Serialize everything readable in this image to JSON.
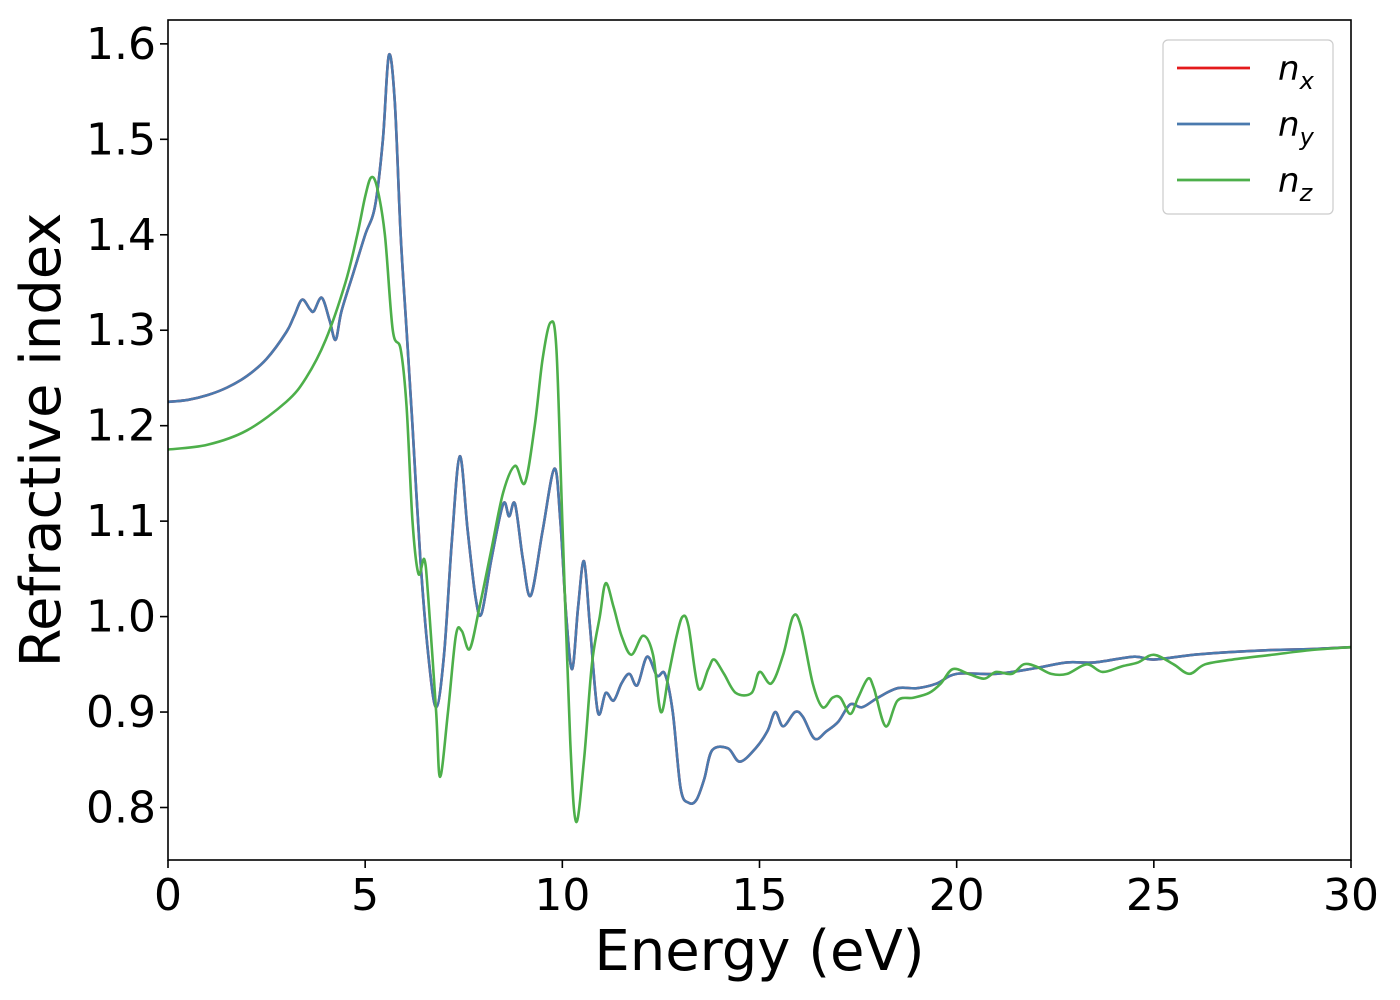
{
  "chart_data": {
    "type": "line",
    "xlabel": "Energy (eV)",
    "ylabel": "Refractive index",
    "xlim": [
      0,
      30
    ],
    "ylim": [
      0.745,
      1.625
    ],
    "xticks": [
      0,
      5,
      10,
      15,
      20,
      25,
      30
    ],
    "xtick_labels": [
      "0",
      "5",
      "10",
      "15",
      "20",
      "25",
      "30"
    ],
    "yticks": [
      0.8,
      0.9,
      1.0,
      1.1,
      1.2,
      1.3,
      1.4,
      1.5,
      1.6
    ],
    "ytick_labels": [
      "0.8",
      "0.9",
      "1.0",
      "1.1",
      "1.2",
      "1.3",
      "1.4",
      "1.5",
      "1.6"
    ],
    "grid": false,
    "legend_position": "top-right",
    "series": [
      {
        "name": "n",
        "subscript": "x",
        "color": "#e41a1c",
        "points": [
          [
            0,
            1.225
          ],
          [
            0.5,
            1.227
          ],
          [
            1,
            1.232
          ],
          [
            1.5,
            1.24
          ],
          [
            2,
            1.252
          ],
          [
            2.5,
            1.27
          ],
          [
            3,
            1.298
          ],
          [
            3.2,
            1.315
          ],
          [
            3.4,
            1.332
          ],
          [
            3.6,
            1.322
          ],
          [
            3.7,
            1.32
          ],
          [
            3.9,
            1.334
          ],
          [
            4.1,
            1.31
          ],
          [
            4.25,
            1.29
          ],
          [
            4.4,
            1.32
          ],
          [
            4.7,
            1.36
          ],
          [
            5.0,
            1.4
          ],
          [
            5.25,
            1.43
          ],
          [
            5.45,
            1.5
          ],
          [
            5.6,
            1.588
          ],
          [
            5.75,
            1.54
          ],
          [
            5.9,
            1.4
          ],
          [
            6.05,
            1.3
          ],
          [
            6.2,
            1.2
          ],
          [
            6.4,
            1.06
          ],
          [
            6.6,
            0.96
          ],
          [
            6.8,
            0.905
          ],
          [
            7.0,
            0.96
          ],
          [
            7.2,
            1.08
          ],
          [
            7.4,
            1.168
          ],
          [
            7.6,
            1.09
          ],
          [
            7.8,
            1.02
          ],
          [
            7.95,
            1.003
          ],
          [
            8.2,
            1.06
          ],
          [
            8.5,
            1.118
          ],
          [
            8.65,
            1.105
          ],
          [
            8.8,
            1.118
          ],
          [
            9.0,
            1.06
          ],
          [
            9.2,
            1.022
          ],
          [
            9.5,
            1.09
          ],
          [
            9.8,
            1.155
          ],
          [
            9.95,
            1.1
          ],
          [
            10.1,
            1.0
          ],
          [
            10.25,
            0.945
          ],
          [
            10.4,
            1.01
          ],
          [
            10.55,
            1.058
          ],
          [
            10.7,
            0.99
          ],
          [
            10.9,
            0.9
          ],
          [
            11.1,
            0.92
          ],
          [
            11.3,
            0.912
          ],
          [
            11.5,
            0.93
          ],
          [
            11.7,
            0.94
          ],
          [
            11.9,
            0.928
          ],
          [
            12.15,
            0.958
          ],
          [
            12.4,
            0.938
          ],
          [
            12.6,
            0.94
          ],
          [
            12.8,
            0.9
          ],
          [
            13.0,
            0.82
          ],
          [
            13.2,
            0.805
          ],
          [
            13.4,
            0.808
          ],
          [
            13.6,
            0.83
          ],
          [
            13.8,
            0.86
          ],
          [
            14.2,
            0.862
          ],
          [
            14.5,
            0.848
          ],
          [
            14.9,
            0.862
          ],
          [
            15.2,
            0.88
          ],
          [
            15.4,
            0.9
          ],
          [
            15.6,
            0.885
          ],
          [
            15.9,
            0.9
          ],
          [
            16.1,
            0.895
          ],
          [
            16.4,
            0.872
          ],
          [
            16.7,
            0.88
          ],
          [
            17.0,
            0.89
          ],
          [
            17.3,
            0.908
          ],
          [
            17.6,
            0.905
          ],
          [
            18.0,
            0.915
          ],
          [
            18.5,
            0.925
          ],
          [
            19.0,
            0.925
          ],
          [
            19.5,
            0.93
          ],
          [
            20.0,
            0.94
          ],
          [
            21.0,
            0.94
          ],
          [
            22.0,
            0.946
          ],
          [
            22.8,
            0.952
          ],
          [
            23.5,
            0.952
          ],
          [
            24.5,
            0.958
          ],
          [
            25.0,
            0.955
          ],
          [
            26.0,
            0.96
          ],
          [
            27.0,
            0.963
          ],
          [
            28.0,
            0.965
          ],
          [
            29.0,
            0.966
          ],
          [
            30.0,
            0.968
          ]
        ]
      },
      {
        "name": "n",
        "subscript": "y",
        "color": "#4a7aae",
        "points": [
          [
            0,
            1.225
          ],
          [
            0.5,
            1.227
          ],
          [
            1,
            1.232
          ],
          [
            1.5,
            1.24
          ],
          [
            2,
            1.252
          ],
          [
            2.5,
            1.27
          ],
          [
            3,
            1.298
          ],
          [
            3.2,
            1.315
          ],
          [
            3.4,
            1.332
          ],
          [
            3.6,
            1.322
          ],
          [
            3.7,
            1.32
          ],
          [
            3.9,
            1.334
          ],
          [
            4.1,
            1.31
          ],
          [
            4.25,
            1.29
          ],
          [
            4.4,
            1.32
          ],
          [
            4.7,
            1.36
          ],
          [
            5.0,
            1.4
          ],
          [
            5.25,
            1.43
          ],
          [
            5.45,
            1.5
          ],
          [
            5.6,
            1.588
          ],
          [
            5.75,
            1.54
          ],
          [
            5.9,
            1.4
          ],
          [
            6.05,
            1.3
          ],
          [
            6.2,
            1.2
          ],
          [
            6.4,
            1.06
          ],
          [
            6.6,
            0.96
          ],
          [
            6.8,
            0.905
          ],
          [
            7.0,
            0.96
          ],
          [
            7.2,
            1.08
          ],
          [
            7.4,
            1.168
          ],
          [
            7.6,
            1.09
          ],
          [
            7.8,
            1.02
          ],
          [
            7.95,
            1.003
          ],
          [
            8.2,
            1.06
          ],
          [
            8.5,
            1.118
          ],
          [
            8.65,
            1.105
          ],
          [
            8.8,
            1.118
          ],
          [
            9.0,
            1.06
          ],
          [
            9.2,
            1.022
          ],
          [
            9.5,
            1.09
          ],
          [
            9.8,
            1.155
          ],
          [
            9.95,
            1.1
          ],
          [
            10.1,
            1.0
          ],
          [
            10.25,
            0.945
          ],
          [
            10.4,
            1.01
          ],
          [
            10.55,
            1.058
          ],
          [
            10.7,
            0.99
          ],
          [
            10.9,
            0.9
          ],
          [
            11.1,
            0.92
          ],
          [
            11.3,
            0.912
          ],
          [
            11.5,
            0.93
          ],
          [
            11.7,
            0.94
          ],
          [
            11.9,
            0.928
          ],
          [
            12.15,
            0.958
          ],
          [
            12.4,
            0.938
          ],
          [
            12.6,
            0.94
          ],
          [
            12.8,
            0.9
          ],
          [
            13.0,
            0.82
          ],
          [
            13.2,
            0.805
          ],
          [
            13.4,
            0.808
          ],
          [
            13.6,
            0.83
          ],
          [
            13.8,
            0.86
          ],
          [
            14.2,
            0.862
          ],
          [
            14.5,
            0.848
          ],
          [
            14.9,
            0.862
          ],
          [
            15.2,
            0.88
          ],
          [
            15.4,
            0.9
          ],
          [
            15.6,
            0.885
          ],
          [
            15.9,
            0.9
          ],
          [
            16.1,
            0.895
          ],
          [
            16.4,
            0.872
          ],
          [
            16.7,
            0.88
          ],
          [
            17.0,
            0.89
          ],
          [
            17.3,
            0.908
          ],
          [
            17.6,
            0.905
          ],
          [
            18.0,
            0.915
          ],
          [
            18.5,
            0.925
          ],
          [
            19.0,
            0.925
          ],
          [
            19.5,
            0.93
          ],
          [
            20.0,
            0.94
          ],
          [
            21.0,
            0.94
          ],
          [
            22.0,
            0.946
          ],
          [
            22.8,
            0.952
          ],
          [
            23.5,
            0.952
          ],
          [
            24.5,
            0.958
          ],
          [
            25.0,
            0.955
          ],
          [
            26.0,
            0.96
          ],
          [
            27.0,
            0.963
          ],
          [
            28.0,
            0.965
          ],
          [
            29.0,
            0.966
          ],
          [
            30.0,
            0.968
          ]
        ]
      },
      {
        "name": "n",
        "subscript": "z",
        "color": "#4daf4a",
        "points": [
          [
            0,
            1.175
          ],
          [
            1,
            1.18
          ],
          [
            2,
            1.195
          ],
          [
            3,
            1.225
          ],
          [
            3.5,
            1.25
          ],
          [
            4.0,
            1.29
          ],
          [
            4.5,
            1.35
          ],
          [
            4.8,
            1.4
          ],
          [
            5.0,
            1.44
          ],
          [
            5.15,
            1.46
          ],
          [
            5.3,
            1.45
          ],
          [
            5.5,
            1.4
          ],
          [
            5.7,
            1.3
          ],
          [
            5.9,
            1.28
          ],
          [
            6.05,
            1.22
          ],
          [
            6.2,
            1.1
          ],
          [
            6.35,
            1.045
          ],
          [
            6.5,
            1.06
          ],
          [
            6.6,
            1.02
          ],
          [
            6.8,
            0.9
          ],
          [
            6.9,
            0.832
          ],
          [
            7.1,
            0.9
          ],
          [
            7.3,
            0.98
          ],
          [
            7.45,
            0.985
          ],
          [
            7.65,
            0.966
          ],
          [
            7.9,
            1.01
          ],
          [
            8.2,
            1.07
          ],
          [
            8.5,
            1.13
          ],
          [
            8.8,
            1.158
          ],
          [
            9.05,
            1.14
          ],
          [
            9.3,
            1.2
          ],
          [
            9.5,
            1.27
          ],
          [
            9.7,
            1.308
          ],
          [
            9.85,
            1.28
          ],
          [
            10.0,
            1.1
          ],
          [
            10.2,
            0.87
          ],
          [
            10.35,
            0.785
          ],
          [
            10.55,
            0.85
          ],
          [
            10.75,
            0.95
          ],
          [
            10.95,
            1.0
          ],
          [
            11.1,
            1.035
          ],
          [
            11.3,
            1.01
          ],
          [
            11.5,
            0.98
          ],
          [
            11.75,
            0.96
          ],
          [
            12.05,
            0.98
          ],
          [
            12.3,
            0.96
          ],
          [
            12.5,
            0.9
          ],
          [
            12.7,
            0.94
          ],
          [
            12.9,
            0.98
          ],
          [
            13.05,
            1.0
          ],
          [
            13.2,
            0.99
          ],
          [
            13.45,
            0.925
          ],
          [
            13.7,
            0.945
          ],
          [
            13.85,
            0.955
          ],
          [
            14.1,
            0.94
          ],
          [
            14.4,
            0.92
          ],
          [
            14.8,
            0.92
          ],
          [
            15.0,
            0.942
          ],
          [
            15.3,
            0.93
          ],
          [
            15.6,
            0.96
          ],
          [
            15.85,
            1.0
          ],
          [
            16.05,
            0.99
          ],
          [
            16.35,
            0.93
          ],
          [
            16.6,
            0.905
          ],
          [
            16.85,
            0.915
          ],
          [
            17.05,
            0.915
          ],
          [
            17.3,
            0.898
          ],
          [
            17.5,
            0.915
          ],
          [
            17.75,
            0.935
          ],
          [
            17.9,
            0.925
          ],
          [
            18.2,
            0.885
          ],
          [
            18.5,
            0.912
          ],
          [
            18.9,
            0.915
          ],
          [
            19.3,
            0.92
          ],
          [
            19.6,
            0.93
          ],
          [
            19.9,
            0.945
          ],
          [
            20.3,
            0.94
          ],
          [
            20.7,
            0.935
          ],
          [
            21.0,
            0.942
          ],
          [
            21.4,
            0.94
          ],
          [
            21.7,
            0.95
          ],
          [
            22.0,
            0.948
          ],
          [
            22.4,
            0.94
          ],
          [
            22.8,
            0.94
          ],
          [
            23.3,
            0.95
          ],
          [
            23.7,
            0.942
          ],
          [
            24.2,
            0.948
          ],
          [
            24.6,
            0.952
          ],
          [
            25.0,
            0.96
          ],
          [
            25.5,
            0.95
          ],
          [
            25.9,
            0.94
          ],
          [
            26.3,
            0.95
          ],
          [
            27.0,
            0.955
          ],
          [
            28.0,
            0.96
          ],
          [
            29.0,
            0.965
          ],
          [
            30.0,
            0.968
          ]
        ]
      }
    ]
  }
}
